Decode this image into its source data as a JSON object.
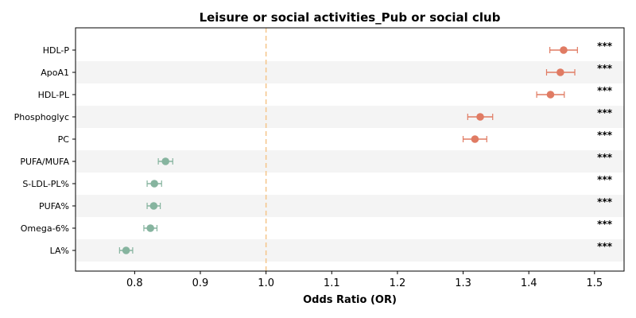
{
  "chart_data": {
    "type": "scatter",
    "title": "Leisure or social activities_Pub or social club",
    "xlabel": "Odds Ratio (OR)",
    "ylabel": "",
    "xlim": [
      0.71,
      1.545
    ],
    "x_ticks": [
      0.8,
      0.9,
      1.0,
      1.1,
      1.2,
      1.3,
      1.4,
      1.5
    ],
    "x_tick_labels": [
      "0.8",
      "0.9",
      "1.0",
      "1.1",
      "1.2",
      "1.3",
      "1.4",
      "1.5"
    ],
    "reference_line": 1.0,
    "significance_label": "***",
    "colors": {
      "positive": "#e07b63",
      "negative": "#86b49f",
      "reference": "#f5c58a",
      "band": "#f4f4f4"
    },
    "points": [
      {
        "label": "HDL-P",
        "or": 1.453,
        "ci_low": 1.432,
        "ci_high": 1.474,
        "direction": "positive",
        "sig": "***"
      },
      {
        "label": "ApoA1",
        "or": 1.448,
        "ci_low": 1.427,
        "ci_high": 1.47,
        "direction": "positive",
        "sig": "***"
      },
      {
        "label": "HDL-PL",
        "or": 1.433,
        "ci_low": 1.412,
        "ci_high": 1.454,
        "direction": "positive",
        "sig": "***"
      },
      {
        "label": "Phosphoglyc",
        "or": 1.326,
        "ci_low": 1.307,
        "ci_high": 1.345,
        "direction": "positive",
        "sig": "***"
      },
      {
        "label": "PC",
        "or": 1.318,
        "ci_low": 1.3,
        "ci_high": 1.336,
        "direction": "positive",
        "sig": "***"
      },
      {
        "label": "PUFA/MUFA",
        "or": 0.847,
        "ci_low": 0.836,
        "ci_high": 0.858,
        "direction": "negative",
        "sig": "***"
      },
      {
        "label": "S-LDL-PL%",
        "or": 0.83,
        "ci_low": 0.819,
        "ci_high": 0.841,
        "direction": "negative",
        "sig": "***"
      },
      {
        "label": "PUFA%",
        "or": 0.829,
        "ci_low": 0.819,
        "ci_high": 0.839,
        "direction": "negative",
        "sig": "***"
      },
      {
        "label": "Omega-6%",
        "or": 0.824,
        "ci_low": 0.814,
        "ci_high": 0.834,
        "direction": "negative",
        "sig": "***"
      },
      {
        "label": "LA%",
        "or": 0.787,
        "ci_low": 0.777,
        "ci_high": 0.797,
        "direction": "negative",
        "sig": "***"
      }
    ]
  }
}
